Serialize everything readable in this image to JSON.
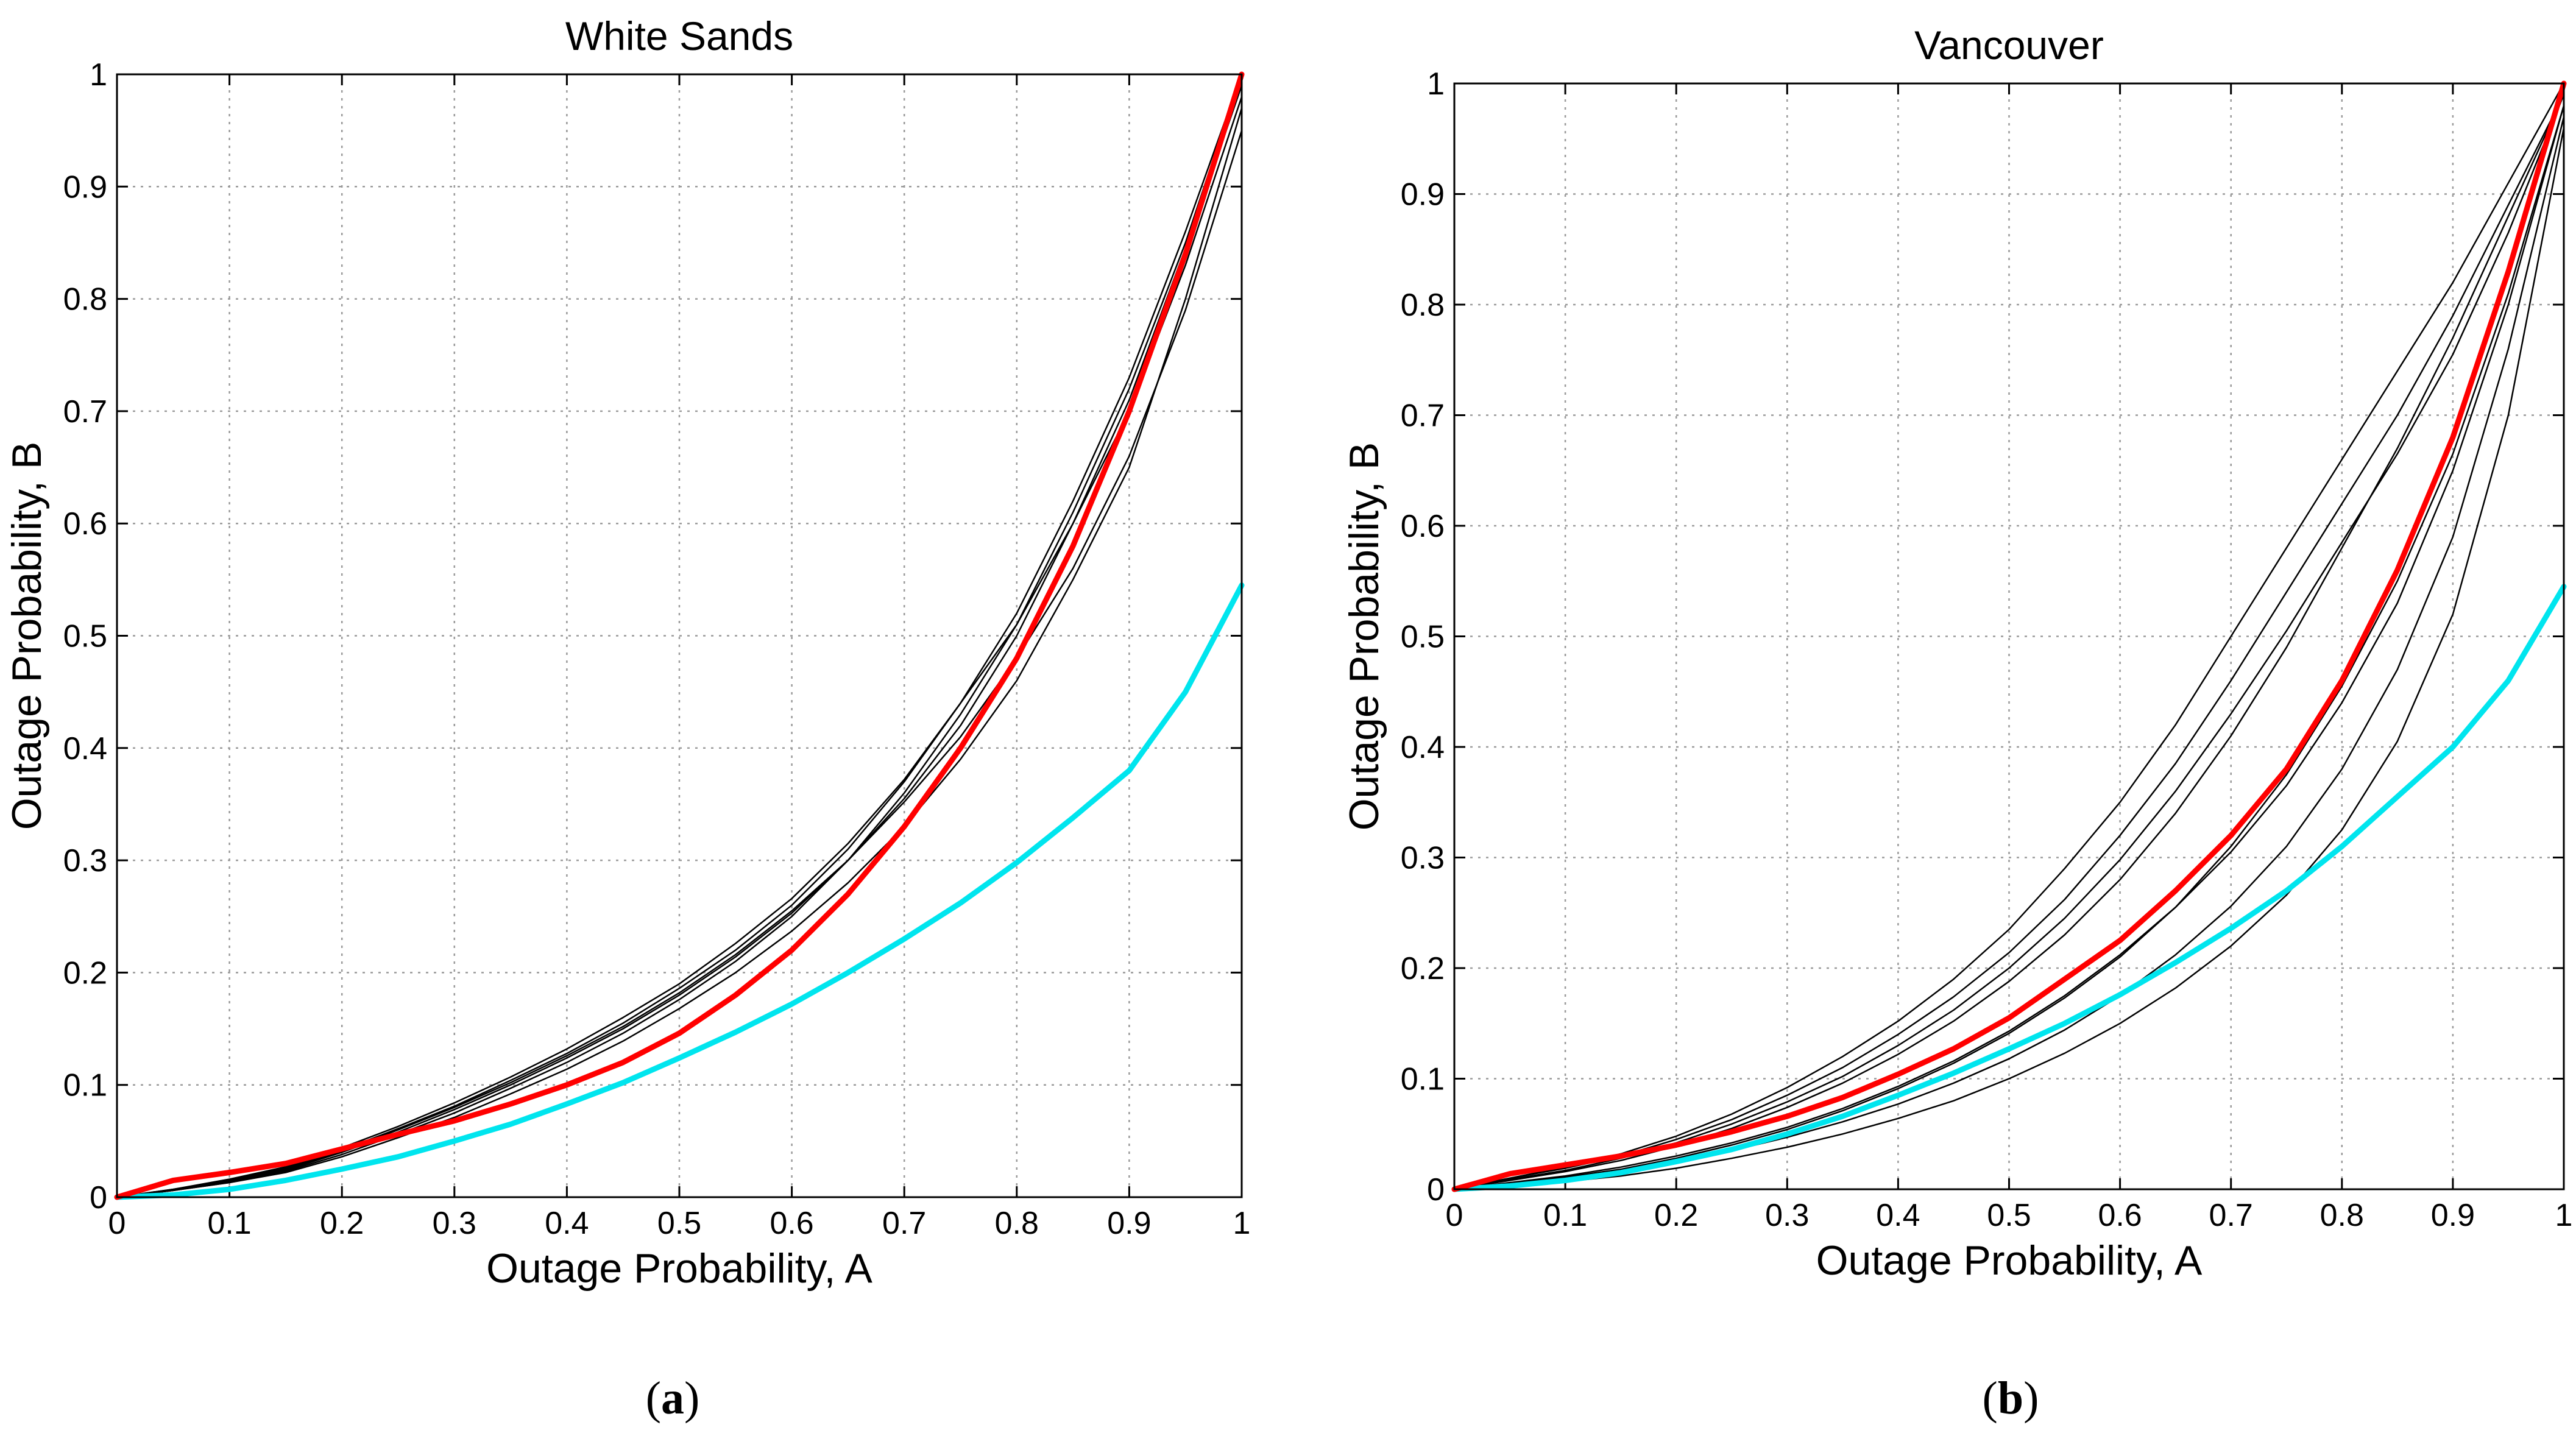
{
  "captions": [
    {
      "open": "(",
      "letter": "a",
      "close": ")"
    },
    {
      "open": "(",
      "letter": "b",
      "close": ")"
    }
  ],
  "colors": {
    "ensemble": "#000000",
    "red_curve": "#ff0000",
    "cyan_curve": "#00e5ee",
    "grid": "#9a9a9a"
  },
  "chart_data": [
    {
      "type": "line",
      "title": "White Sands",
      "xlabel": "Outage Probability, A",
      "ylabel": "Outage Probability, B",
      "xlim": [
        0,
        1
      ],
      "ylim": [
        0,
        1
      ],
      "grid": true,
      "xticks": [
        "0",
        "0.1",
        "0.2",
        "0.3",
        "0.4",
        "0.5",
        "0.6",
        "0.7",
        "0.8",
        "0.9",
        "1"
      ],
      "yticks": [
        "0",
        "0.1",
        "0.2",
        "0.3",
        "0.4",
        "0.5",
        "0.6",
        "0.7",
        "0.8",
        "0.9",
        "1"
      ],
      "x": [
        0,
        0.05,
        0.1,
        0.15,
        0.2,
        0.25,
        0.3,
        0.35,
        0.4,
        0.45,
        0.5,
        0.55,
        0.6,
        0.65,
        0.7,
        0.75,
        0.8,
        0.85,
        0.9,
        0.95,
        1
      ],
      "series": [
        {
          "name": "red",
          "color": "#ff0000",
          "width": 9,
          "values": [
            0,
            0.015,
            0.022,
            0.03,
            0.043,
            0.056,
            0.068,
            0.083,
            0.1,
            0.12,
            0.146,
            0.18,
            0.22,
            0.27,
            0.33,
            0.4,
            0.48,
            0.58,
            0.7,
            0.84,
            1.0
          ]
        },
        {
          "name": "cyan",
          "color": "#00e5ee",
          "width": 9,
          "values": [
            0,
            0.002,
            0.007,
            0.015,
            0.025,
            0.036,
            0.05,
            0.065,
            0.083,
            0.102,
            0.124,
            0.147,
            0.172,
            0.2,
            0.23,
            0.262,
            0.298,
            0.338,
            0.38,
            0.45,
            0.545
          ]
        },
        {
          "name": "ensemble-1",
          "color": "#000000",
          "width": 2.5,
          "values": [
            0,
            0.006,
            0.013,
            0.023,
            0.038,
            0.056,
            0.075,
            0.097,
            0.12,
            0.146,
            0.176,
            0.21,
            0.25,
            0.3,
            0.36,
            0.43,
            0.51,
            0.61,
            0.72,
            0.85,
            1.0
          ]
        },
        {
          "name": "ensemble-2",
          "color": "#000000",
          "width": 2.5,
          "values": [
            0,
            0.007,
            0.015,
            0.026,
            0.042,
            0.061,
            0.081,
            0.104,
            0.128,
            0.155,
            0.186,
            0.22,
            0.26,
            0.31,
            0.37,
            0.44,
            0.52,
            0.62,
            0.73,
            0.86,
            1.0
          ]
        },
        {
          "name": "ensemble-3",
          "color": "#000000",
          "width": 2.5,
          "values": [
            0,
            0.006,
            0.014,
            0.024,
            0.04,
            0.058,
            0.078,
            0.1,
            0.124,
            0.15,
            0.18,
            0.214,
            0.253,
            0.3,
            0.355,
            0.42,
            0.5,
            0.6,
            0.71,
            0.845,
            0.99
          ]
        },
        {
          "name": "ensemble-4",
          "color": "#000000",
          "width": 2.5,
          "values": [
            0,
            0.007,
            0.016,
            0.027,
            0.044,
            0.063,
            0.084,
            0.107,
            0.132,
            0.16,
            0.19,
            0.226,
            0.266,
            0.315,
            0.372,
            0.44,
            0.51,
            0.6,
            0.7,
            0.83,
            0.98
          ]
        },
        {
          "name": "ensemble-5",
          "color": "#000000",
          "width": 2.5,
          "values": [
            0,
            0.006,
            0.013,
            0.022,
            0.036,
            0.053,
            0.071,
            0.092,
            0.114,
            0.139,
            0.168,
            0.2,
            0.237,
            0.28,
            0.33,
            0.39,
            0.46,
            0.55,
            0.65,
            0.8,
            0.97
          ]
        },
        {
          "name": "ensemble-6",
          "color": "#000000",
          "width": 2.5,
          "values": [
            0,
            0.006,
            0.014,
            0.025,
            0.041,
            0.06,
            0.08,
            0.102,
            0.126,
            0.152,
            0.182,
            0.216,
            0.255,
            0.3,
            0.352,
            0.41,
            0.48,
            0.56,
            0.66,
            0.79,
            0.95
          ]
        }
      ]
    },
    {
      "type": "line",
      "title": "Vancouver",
      "xlabel": "Outage Probability, A",
      "ylabel": "Outage Probability, B",
      "xlim": [
        0,
        1
      ],
      "ylim": [
        0,
        1
      ],
      "grid": true,
      "xticks": [
        "0",
        "0.1",
        "0.2",
        "0.3",
        "0.4",
        "0.5",
        "0.6",
        "0.7",
        "0.8",
        "0.9",
        "1"
      ],
      "yticks": [
        "0",
        "0.1",
        "0.2",
        "0.3",
        "0.4",
        "0.5",
        "0.6",
        "0.7",
        "0.8",
        "0.9",
        "1"
      ],
      "x": [
        0,
        0.05,
        0.1,
        0.15,
        0.2,
        0.25,
        0.3,
        0.35,
        0.4,
        0.45,
        0.5,
        0.55,
        0.6,
        0.65,
        0.7,
        0.75,
        0.8,
        0.85,
        0.9,
        0.95,
        1
      ],
      "series": [
        {
          "name": "red",
          "color": "#ff0000",
          "width": 9,
          "values": [
            0,
            0.014,
            0.022,
            0.03,
            0.04,
            0.052,
            0.066,
            0.083,
            0.104,
            0.127,
            0.155,
            0.19,
            0.225,
            0.27,
            0.32,
            0.38,
            0.46,
            0.56,
            0.68,
            0.83,
            1.0
          ]
        },
        {
          "name": "cyan",
          "color": "#00e5ee",
          "width": 9,
          "values": [
            0,
            0.003,
            0.008,
            0.015,
            0.025,
            0.036,
            0.05,
            0.066,
            0.085,
            0.105,
            0.127,
            0.15,
            0.176,
            0.205,
            0.236,
            0.27,
            0.31,
            0.355,
            0.4,
            0.46,
            0.545
          ]
        },
        {
          "name": "ensemble-1",
          "color": "#000000",
          "width": 2.5,
          "values": [
            0,
            0.01,
            0.02,
            0.032,
            0.048,
            0.068,
            0.092,
            0.12,
            0.152,
            0.19,
            0.235,
            0.29,
            0.35,
            0.42,
            0.5,
            0.58,
            0.66,
            0.74,
            0.82,
            0.91,
            1.0
          ]
        },
        {
          "name": "ensemble-2",
          "color": "#000000",
          "width": 2.5,
          "values": [
            0,
            0.01,
            0.019,
            0.03,
            0.045,
            0.063,
            0.085,
            0.11,
            0.14,
            0.174,
            0.214,
            0.262,
            0.32,
            0.385,
            0.46,
            0.54,
            0.62,
            0.7,
            0.79,
            0.89,
            0.99
          ]
        },
        {
          "name": "ensemble-3",
          "color": "#000000",
          "width": 2.5,
          "values": [
            0,
            0.008,
            0.016,
            0.026,
            0.039,
            0.055,
            0.074,
            0.096,
            0.122,
            0.152,
            0.188,
            0.23,
            0.28,
            0.34,
            0.41,
            0.49,
            0.58,
            0.67,
            0.77,
            0.88,
            0.99
          ]
        },
        {
          "name": "ensemble-4",
          "color": "#000000",
          "width": 2.5,
          "values": [
            0,
            0.006,
            0.012,
            0.02,
            0.03,
            0.042,
            0.056,
            0.073,
            0.093,
            0.116,
            0.143,
            0.175,
            0.212,
            0.255,
            0.305,
            0.365,
            0.44,
            0.53,
            0.65,
            0.8,
            0.98
          ]
        },
        {
          "name": "ensemble-5",
          "color": "#000000",
          "width": 2.5,
          "values": [
            0,
            0.004,
            0.009,
            0.016,
            0.025,
            0.035,
            0.047,
            0.061,
            0.077,
            0.096,
            0.118,
            0.144,
            0.175,
            0.212,
            0.256,
            0.31,
            0.38,
            0.47,
            0.59,
            0.76,
            0.97
          ]
        },
        {
          "name": "ensemble-6",
          "color": "#000000",
          "width": 2.5,
          "values": [
            0,
            0.003,
            0.007,
            0.012,
            0.019,
            0.028,
            0.038,
            0.05,
            0.064,
            0.08,
            0.1,
            0.123,
            0.15,
            0.182,
            0.22,
            0.266,
            0.325,
            0.405,
            0.52,
            0.7,
            0.96
          ]
        },
        {
          "name": "ensemble-7",
          "color": "#000000",
          "width": 2.5,
          "values": [
            0,
            0.009,
            0.017,
            0.028,
            0.042,
            0.059,
            0.079,
            0.102,
            0.13,
            0.162,
            0.2,
            0.245,
            0.298,
            0.36,
            0.43,
            0.505,
            0.585,
            0.665,
            0.755,
            0.865,
            0.99
          ]
        },
        {
          "name": "ensemble-8",
          "color": "#000000",
          "width": 2.5,
          "values": [
            0,
            0.005,
            0.011,
            0.018,
            0.028,
            0.04,
            0.054,
            0.071,
            0.091,
            0.114,
            0.141,
            0.173,
            0.21,
            0.255,
            0.31,
            0.375,
            0.455,
            0.55,
            0.665,
            0.81,
            0.98
          ]
        }
      ]
    }
  ]
}
